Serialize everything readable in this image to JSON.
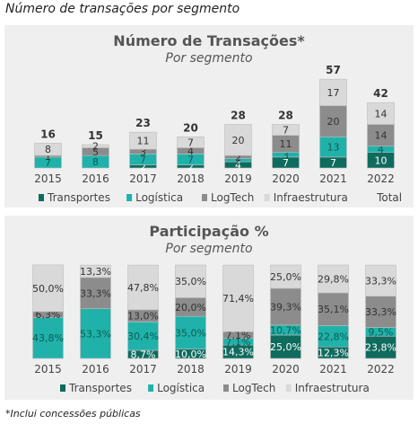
{
  "caption": "Número de transações por segmento",
  "footnote": "*Inclui concessões públicas",
  "colors": {
    "Transportes": "#0e6b5e",
    "Logistica": "#20b2aa",
    "LogTech": "#8c8c8c",
    "Infraestrutura": "#d9d9d9",
    "panel_bg": "#efefef",
    "text": "#555555"
  },
  "chart_data": [
    {
      "type": "bar",
      "stacked": true,
      "title": "Número de Transações*",
      "subtitle": "Por segmento",
      "categories": [
        "2015",
        "2016",
        "2017",
        "2018",
        "2019",
        "2020",
        "2021",
        "2022"
      ],
      "series": [
        {
          "name": "Transportes",
          "values": [
            0,
            0,
            2,
            2,
            4,
            7,
            7,
            10
          ]
        },
        {
          "name": "Logística",
          "values": [
            7,
            8,
            7,
            7,
            2,
            3,
            13,
            4
          ]
        },
        {
          "name": "LogTech",
          "values": [
            1,
            5,
            3,
            4,
            2,
            11,
            20,
            14
          ]
        },
        {
          "name": "Infraestrutura",
          "values": [
            8,
            2,
            11,
            7,
            20,
            7,
            17,
            14
          ]
        }
      ],
      "segment_labels": [
        [
          "0",
          "7",
          "1",
          "8"
        ],
        [
          "0",
          "8",
          "5",
          "2"
        ],
        [
          "2",
          "7",
          "3",
          "11"
        ],
        [
          "2",
          "7",
          "4",
          "7"
        ],
        [
          "4",
          "2",
          "2",
          "20"
        ],
        [
          "7",
          "3",
          "11",
          "7"
        ],
        [
          "7",
          "13",
          "20",
          "17"
        ],
        [
          "10",
          "4",
          "14",
          "14"
        ]
      ],
      "totals": [
        16,
        15,
        23,
        20,
        28,
        28,
        57,
        42
      ],
      "legend": [
        "Transportes",
        "Logística",
        "LogTech",
        "Infraestrutura",
        "Total"
      ],
      "legend_position": "bottom",
      "ylim": [
        0,
        60
      ],
      "grid": false
    },
    {
      "type": "bar",
      "stacked": true,
      "percent": true,
      "title": "Participação %",
      "subtitle": "Por segmento",
      "categories": [
        "2015",
        "2016",
        "2017",
        "2018",
        "2019",
        "2020",
        "2021",
        "2022"
      ],
      "series": [
        {
          "name": "Transportes",
          "values": [
            0,
            0,
            8.7,
            10.0,
            14.3,
            25.0,
            12.3,
            23.8
          ]
        },
        {
          "name": "Logística",
          "values": [
            43.8,
            53.3,
            30.4,
            35.0,
            7.1,
            10.7,
            22.8,
            9.5
          ]
        },
        {
          "name": "LogTech",
          "values": [
            6.3,
            33.3,
            13.0,
            20.0,
            7.1,
            39.3,
            35.1,
            33.3
          ]
        },
        {
          "name": "Infraestrutura",
          "values": [
            50.0,
            13.3,
            47.8,
            35.0,
            71.4,
            25.0,
            29.8,
            33.3
          ]
        }
      ],
      "segment_labels": [
        [
          "",
          "43,8%",
          "6,3%",
          "50,0%"
        ],
        [
          "",
          "53,3%",
          "33,3%",
          "13,3%"
        ],
        [
          "8,7%",
          "30,4%",
          "13,0%",
          "47,8%"
        ],
        [
          "10,0%",
          "35,0%",
          "20,0%",
          "35,0%"
        ],
        [
          "14,3%",
          "7,1%",
          "7,1%",
          "71,4%"
        ],
        [
          "25,0%",
          "10,7%",
          "39,3%",
          "25,0%"
        ],
        [
          "12,3%",
          "22,8%",
          "35,1%",
          "29,8%"
        ],
        [
          "23,8%",
          "9,5%",
          "33,3%",
          "33,3%"
        ]
      ],
      "legend": [
        "Transportes",
        "Logística",
        "LogTech",
        "Infraestrutura"
      ],
      "legend_position": "bottom",
      "ylim": [
        0,
        100
      ],
      "grid": false
    }
  ]
}
